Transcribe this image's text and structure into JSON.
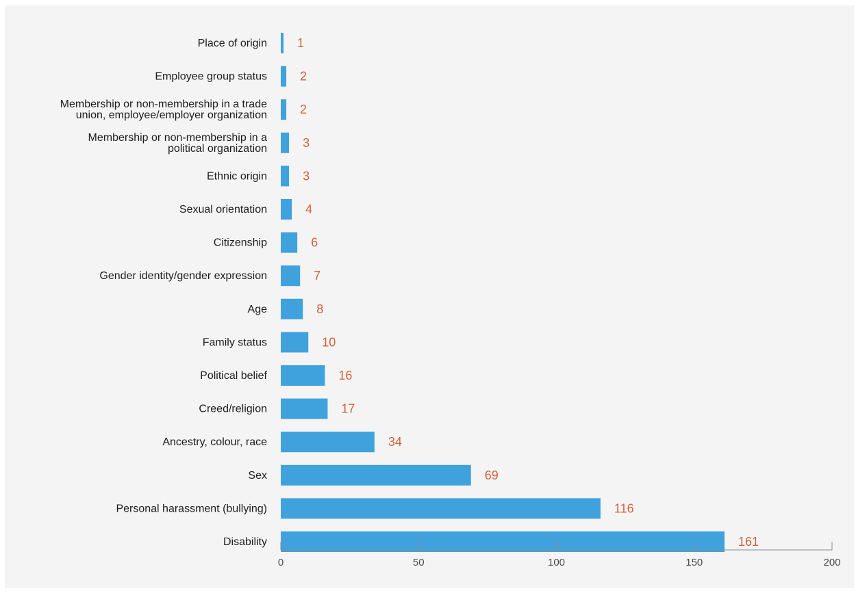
{
  "chart_data": {
    "type": "bar",
    "orientation": "horizontal",
    "categories": [
      "Place of origin",
      "Employee group status",
      "Membership or non-membership in a trade union, employee/employer organization",
      "Membership or non-membership in a political organization",
      "Ethnic origin",
      "Sexual orientation",
      "Citizenship",
      "Gender identity/gender expression",
      "Age",
      "Family status",
      "Political belief",
      "Creed/religion",
      "Ancestry, colour, race",
      "Sex",
      "Personal harassment (bullying)",
      "Disability"
    ],
    "category_label_lines": [
      [
        "Place of origin"
      ],
      [
        "Employee group status"
      ],
      [
        "Membership or non-membership in a trade",
        "union, employee/employer organization"
      ],
      [
        "Membership or non-membership in a",
        "political organization"
      ],
      [
        "Ethnic origin"
      ],
      [
        "Sexual orientation"
      ],
      [
        "Citizenship"
      ],
      [
        "Gender identity/gender expression"
      ],
      [
        "Age"
      ],
      [
        "Family status"
      ],
      [
        "Political belief"
      ],
      [
        "Creed/religion"
      ],
      [
        "Ancestry, colour, race"
      ],
      [
        "Sex"
      ],
      [
        "Personal harassment (bullying)"
      ],
      [
        "Disability"
      ]
    ],
    "values": [
      1,
      2,
      2,
      3,
      3,
      4,
      6,
      7,
      8,
      10,
      16,
      17,
      34,
      69,
      116,
      161
    ],
    "xlim": [
      0,
      200
    ],
    "xticks": [
      0,
      50,
      100,
      150,
      200
    ],
    "title": "",
    "xlabel": "",
    "ylabel": "",
    "grid": false,
    "legend": "none",
    "colors": {
      "bar": "#3fa2dc",
      "value_label": "#d0623a",
      "axis": "#8a8a8a",
      "background": "#f4f4f4"
    }
  }
}
